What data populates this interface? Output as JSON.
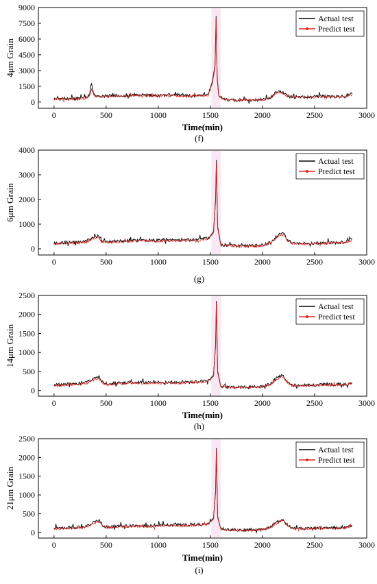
{
  "figure": {
    "colors": {
      "actual": "#000000",
      "predict": "#e8201a",
      "shade": "#f2d6ea",
      "axis": "#000000"
    }
  },
  "chart_data": [
    {
      "type": "line",
      "panel_label": "(f)",
      "xlabel": "Time(min)",
      "ylabel": "4μm Grain",
      "xlim": [
        -150,
        3000
      ],
      "ylim": [
        -600,
        9000
      ],
      "xticks": [
        0,
        500,
        1000,
        1500,
        2000,
        2500,
        3000
      ],
      "yticks": [
        0,
        1500,
        3000,
        4500,
        6000,
        7500,
        9000
      ],
      "grid": false,
      "legend_position": "top-right",
      "series": [
        {
          "name": "Actual test",
          "x": [
            0,
            100,
            200,
            300,
            340,
            360,
            380,
            400,
            500,
            600,
            700,
            800,
            900,
            1000,
            1100,
            1200,
            1300,
            1400,
            1480,
            1520,
            1545,
            1555,
            1565,
            1580,
            1620,
            1700,
            1800,
            1900,
            2000,
            2080,
            2130,
            2180,
            2220,
            2260,
            2300,
            2400,
            2500,
            2600,
            2700,
            2800,
            2860
          ],
          "y": [
            280,
            320,
            300,
            380,
            600,
            1900,
            700,
            520,
            560,
            600,
            580,
            640,
            620,
            600,
            650,
            600,
            560,
            620,
            700,
            2000,
            3500,
            8200,
            2500,
            600,
            250,
            180,
            160,
            170,
            220,
            420,
            900,
            960,
            700,
            520,
            480,
            460,
            500,
            520,
            480,
            520,
            760
          ]
        },
        {
          "name": "Predict test",
          "x": [
            0,
            100,
            200,
            300,
            340,
            360,
            380,
            400,
            500,
            600,
            700,
            800,
            900,
            1000,
            1100,
            1200,
            1300,
            1400,
            1480,
            1520,
            1545,
            1555,
            1565,
            1580,
            1620,
            1700,
            1800,
            1900,
            2000,
            2080,
            2130,
            2180,
            2220,
            2260,
            2300,
            2400,
            2500,
            2600,
            2700,
            2800,
            2860
          ],
          "y": [
            250,
            290,
            280,
            340,
            520,
            1300,
            640,
            480,
            520,
            560,
            540,
            600,
            580,
            570,
            610,
            570,
            530,
            590,
            660,
            1800,
            3300,
            8000,
            2300,
            560,
            230,
            170,
            150,
            160,
            200,
            380,
            820,
            880,
            650,
            480,
            450,
            440,
            470,
            490,
            460,
            490,
            700
          ]
        }
      ]
    },
    {
      "type": "line",
      "panel_label": "(g)",
      "xlabel": "",
      "ylabel": "6μm Grain",
      "xlim": [
        -150,
        3000
      ],
      "ylim": [
        -250,
        4000
      ],
      "xticks": [
        0,
        500,
        1000,
        1500,
        2000,
        2500,
        3000
      ],
      "yticks": [
        0,
        1000,
        2000,
        3000,
        4000
      ],
      "grid": false,
      "legend_position": "top-right",
      "series": [
        {
          "name": "Actual test",
          "x": [
            0,
            100,
            200,
            300,
            360,
            420,
            460,
            500,
            600,
            700,
            800,
            900,
            1000,
            1100,
            1200,
            1300,
            1400,
            1480,
            1530,
            1550,
            1558,
            1570,
            1600,
            1700,
            1800,
            1900,
            2000,
            2080,
            2140,
            2200,
            2230,
            2280,
            2400,
            2500,
            2600,
            2700,
            2800,
            2860
          ],
          "y": [
            220,
            250,
            260,
            280,
            420,
            520,
            300,
            280,
            300,
            320,
            330,
            340,
            330,
            360,
            350,
            360,
            380,
            420,
            700,
            2000,
            3600,
            900,
            160,
            120,
            110,
            120,
            140,
            250,
            520,
            640,
            400,
            220,
            210,
            230,
            240,
            250,
            260,
            420
          ]
        },
        {
          "name": "Predict test",
          "x": [
            0,
            100,
            200,
            300,
            360,
            420,
            460,
            500,
            600,
            700,
            800,
            900,
            1000,
            1100,
            1200,
            1300,
            1400,
            1480,
            1530,
            1550,
            1558,
            1570,
            1600,
            1700,
            1800,
            1900,
            2000,
            2080,
            2140,
            2200,
            2230,
            2280,
            2400,
            2500,
            2600,
            2700,
            2800,
            2860
          ],
          "y": [
            200,
            220,
            230,
            250,
            380,
            460,
            270,
            250,
            270,
            290,
            300,
            310,
            300,
            330,
            320,
            330,
            350,
            390,
            640,
            1900,
            3500,
            820,
            150,
            110,
            100,
            110,
            130,
            230,
            470,
            580,
            360,
            200,
            190,
            210,
            220,
            230,
            240,
            380
          ]
        }
      ]
    },
    {
      "type": "line",
      "panel_label": "(h)",
      "xlabel": "Time(min)",
      "ylabel": "14μm Grain",
      "xlim": [
        -150,
        3000
      ],
      "ylim": [
        -150,
        2500
      ],
      "xticks": [
        0,
        500,
        1000,
        1500,
        2000,
        2500,
        3000
      ],
      "yticks": [
        0,
        500,
        1000,
        1500,
        2000,
        2500
      ],
      "grid": false,
      "legend_position": "top-right",
      "series": [
        {
          "name": "Actual test",
          "x": [
            0,
            100,
            200,
            300,
            380,
            430,
            470,
            520,
            600,
            700,
            800,
            900,
            1000,
            1100,
            1200,
            1300,
            1400,
            1480,
            1530,
            1550,
            1558,
            1570,
            1600,
            1700,
            1800,
            1900,
            2000,
            2080,
            2140,
            2200,
            2230,
            2280,
            2400,
            2500,
            2600,
            2700,
            2800,
            2860
          ],
          "y": [
            140,
            160,
            170,
            190,
            300,
            360,
            200,
            170,
            190,
            200,
            210,
            200,
            210,
            220,
            210,
            220,
            230,
            260,
            400,
            1200,
            2350,
            500,
            110,
            90,
            80,
            85,
            100,
            180,
            330,
            400,
            260,
            140,
            130,
            140,
            150,
            150,
            160,
            200
          ]
        },
        {
          "name": "Predict test",
          "x": [
            0,
            100,
            200,
            300,
            380,
            430,
            470,
            520,
            600,
            700,
            800,
            900,
            1000,
            1100,
            1200,
            1300,
            1400,
            1480,
            1530,
            1550,
            1558,
            1570,
            1600,
            1700,
            1800,
            1900,
            2000,
            2080,
            2140,
            2200,
            2230,
            2280,
            2400,
            2500,
            2600,
            2700,
            2800,
            2860
          ],
          "y": [
            120,
            140,
            150,
            170,
            270,
            320,
            180,
            150,
            170,
            180,
            190,
            180,
            190,
            200,
            190,
            200,
            210,
            240,
            370,
            1150,
            2300,
            460,
            100,
            80,
            75,
            80,
            90,
            160,
            300,
            360,
            230,
            125,
            120,
            130,
            135,
            140,
            145,
            180
          ]
        }
      ]
    },
    {
      "type": "line",
      "panel_label": "(i)",
      "xlabel": "Time(min)",
      "ylabel": "21μm Grain",
      "xlim": [
        -150,
        3000
      ],
      "ylim": [
        -150,
        2500
      ],
      "xticks": [
        0,
        500,
        1000,
        1500,
        2000,
        2500,
        3000
      ],
      "yticks": [
        0,
        500,
        1000,
        1500,
        2000,
        2500
      ],
      "grid": false,
      "legend_position": "top-right",
      "series": [
        {
          "name": "Actual test",
          "x": [
            0,
            100,
            200,
            300,
            380,
            430,
            470,
            520,
            600,
            700,
            800,
            900,
            1000,
            1100,
            1200,
            1300,
            1400,
            1480,
            1530,
            1550,
            1558,
            1570,
            1600,
            1700,
            1800,
            1900,
            2000,
            2080,
            2140,
            2200,
            2230,
            2280,
            2400,
            2500,
            2600,
            2700,
            2800,
            2860
          ],
          "y": [
            110,
            120,
            130,
            150,
            260,
            330,
            170,
            140,
            160,
            170,
            180,
            170,
            190,
            200,
            190,
            200,
            210,
            240,
            380,
            1100,
            2250,
            420,
            90,
            70,
            65,
            70,
            80,
            150,
            280,
            350,
            220,
            110,
            100,
            110,
            120,
            120,
            130,
            180
          ]
        },
        {
          "name": "Predict test",
          "x": [
            0,
            100,
            200,
            300,
            380,
            430,
            470,
            520,
            600,
            700,
            800,
            900,
            1000,
            1100,
            1200,
            1300,
            1400,
            1480,
            1530,
            1550,
            1558,
            1570,
            1600,
            1700,
            1800,
            1900,
            2000,
            2080,
            2140,
            2200,
            2230,
            2280,
            2400,
            2500,
            2600,
            2700,
            2800,
            2860
          ],
          "y": [
            95,
            105,
            115,
            130,
            230,
            300,
            150,
            125,
            145,
            150,
            160,
            150,
            170,
            180,
            170,
            180,
            190,
            220,
            350,
            1050,
            2200,
            390,
            80,
            65,
            60,
            65,
            75,
            135,
            250,
            320,
            200,
            100,
            95,
            100,
            110,
            110,
            120,
            160
          ]
        }
      ]
    }
  ]
}
